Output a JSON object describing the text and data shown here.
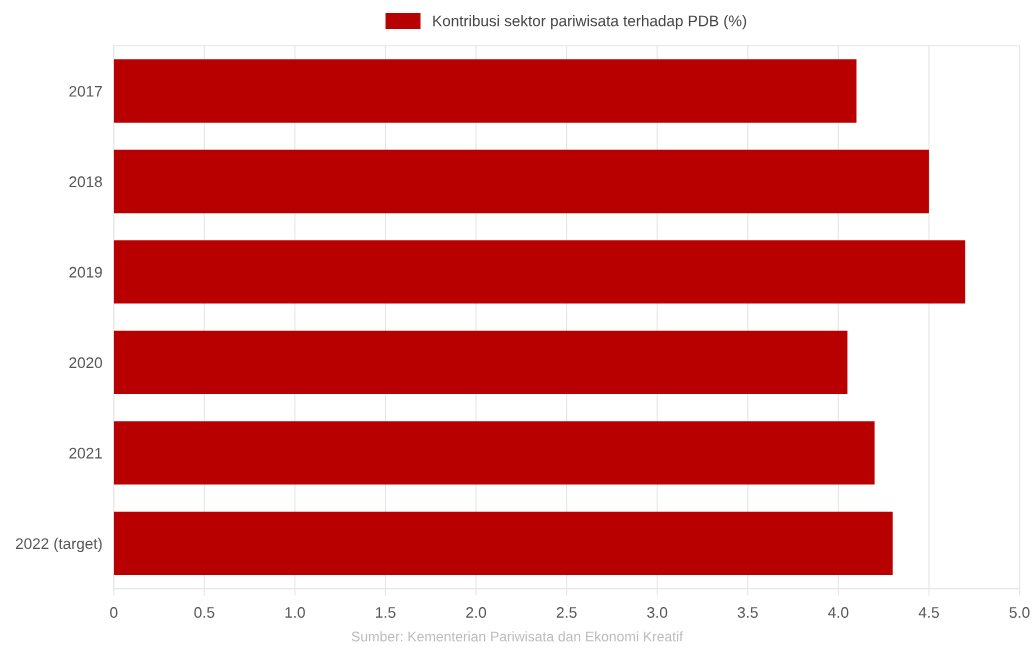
{
  "chart_data": {
    "type": "bar",
    "orientation": "horizontal",
    "categories": [
      "2017",
      "2018",
      "2019",
      "2020",
      "2021",
      "2022 (target)"
    ],
    "series": [
      {
        "name": "Kontribusi sektor pariwisata terhadap PDB (%)",
        "color": "#b80000",
        "values": [
          4.1,
          4.5,
          4.7,
          4.05,
          4.2,
          4.3
        ]
      }
    ],
    "xlim": [
      0,
      5
    ],
    "xticks": [
      0,
      {
        "value": 0.5,
        "label": "0.5"
      },
      {
        "value": 1,
        "label": "1.0"
      },
      {
        "value": 1.5,
        "label": "1.5"
      },
      {
        "value": 2,
        "label": "2.0"
      },
      {
        "value": 2.5,
        "label": "2.5"
      },
      {
        "value": 3,
        "label": "3.0"
      },
      {
        "value": 3.5,
        "label": "3.5"
      },
      {
        "value": 4,
        "label": "4.0"
      },
      {
        "value": 4.5,
        "label": "4.5"
      },
      {
        "value": 5,
        "label": "5.0"
      }
    ],
    "grid": "x",
    "legend": "top",
    "annotations": [
      "Sumber: Kementerian Pariwisata dan Ekonomi Kreatif"
    ]
  }
}
